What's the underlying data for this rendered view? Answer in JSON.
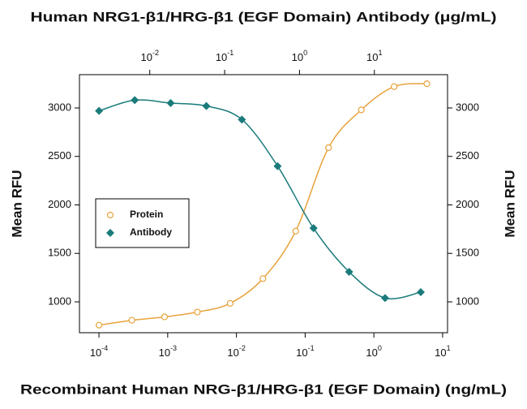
{
  "chart_data": {
    "type": "scatter",
    "title": "Human NRG1-β1/HRG-β1 (EGF Domain) Antibody (μg/mL)",
    "xlabel": "Recombinant Human NRG-β1/HRG-β1 (EGF Domain) (ng/mL)",
    "ylabel": "Mean RFU",
    "y2label": "Mean RFU",
    "xscale": "log",
    "x2scale": "log",
    "xlim": [
      5.2e-05,
      11.8
    ],
    "xticks": [
      {
        "value": 0.0001,
        "label": "10",
        "sup": "-4"
      },
      {
        "value": 0.001,
        "label": "10",
        "sup": "-3"
      },
      {
        "value": 0.01,
        "label": "10",
        "sup": "-2"
      },
      {
        "value": 0.1,
        "label": "10",
        "sup": "-1"
      },
      {
        "value": 1,
        "label": "10",
        "sup": "0"
      },
      {
        "value": 10,
        "label": "10",
        "sup": "1"
      }
    ],
    "x2lim": [
      0.00115,
      95
    ],
    "x2ticks": [
      {
        "value": 0.01,
        "label": "10",
        "sup": "-2"
      },
      {
        "value": 0.1,
        "label": "10",
        "sup": "-1"
      },
      {
        "value": 1,
        "label": "10",
        "sup": "0"
      },
      {
        "value": 10,
        "label": "10",
        "sup": "1"
      }
    ],
    "ylim": [
      682,
      3343
    ],
    "yticks": [
      1000,
      1500,
      2000,
      2500,
      3000
    ],
    "y2lim": [
      682,
      3343
    ],
    "y2ticks": [
      1000,
      1500,
      2000,
      2500,
      3000
    ],
    "legend": "center-left",
    "series": [
      {
        "name": "Protein",
        "color": "#e8a33c",
        "marker": "circle",
        "x": [
          0.0001,
          0.0003,
          0.0009,
          0.0027,
          0.0081,
          0.0243,
          0.0729,
          0.219,
          0.656,
          1.97,
          5.9
        ],
        "values": [
          760,
          810,
          845,
          895,
          985,
          1240,
          1730,
          2590,
          2980,
          3220,
          3250
        ]
      },
      {
        "name": "Antibody",
        "color": "#1b7b7b",
        "marker": "diamond",
        "axis": "x2",
        "x": [
          0.0021,
          0.0063,
          0.019,
          0.057,
          0.17,
          0.51,
          1.54,
          4.6,
          13.9,
          41.7
        ],
        "values": [
          2970,
          3080,
          3050,
          3020,
          2880,
          2400,
          1760,
          1310,
          1040,
          1100
        ]
      }
    ]
  }
}
